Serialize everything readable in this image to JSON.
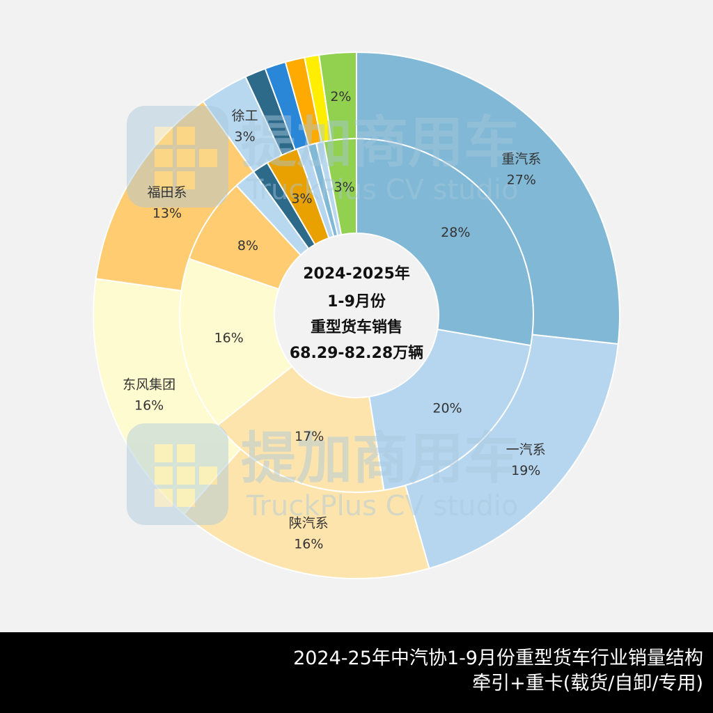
{
  "chart_data": {
    "type": "pie",
    "variant": "double-donut",
    "center_title": [
      "2024-2025年",
      "1-9月份",
      "重型货车销售",
      "68.29-82.28万辆"
    ],
    "rings": [
      {
        "name": "",
        "position": "inner",
        "slices": [
          {
            "label": "",
            "value": 28,
            "value_label": "28%",
            "color": "#80b8d6"
          },
          {
            "label": "",
            "value": 20,
            "value_label": "20%",
            "color": "#b6d5ef"
          },
          {
            "label": "",
            "value": 17,
            "value_label": "17%",
            "color": "#fde4ad"
          },
          {
            "label": "",
            "value": 16,
            "value_label": "16%",
            "color": "#fffbd0"
          },
          {
            "label": "",
            "value": 8,
            "value_label": "8%",
            "color": "#ffcc72"
          },
          {
            "label": "",
            "value": 2,
            "value_label": "",
            "color": "#b8d8f0"
          },
          {
            "label": "",
            "value": 1.5,
            "value_label": "",
            "color": "#2d6a8a"
          },
          {
            "label": "",
            "value": 3,
            "value_label": "3%",
            "color": "#e8a100"
          },
          {
            "label": "",
            "value": 1,
            "value_label": "",
            "color": "#b6d5ef"
          },
          {
            "label": "",
            "value": 0.8,
            "value_label": "",
            "color": "#80b8d6"
          },
          {
            "label": "",
            "value": 0.7,
            "value_label": "",
            "color": "#b8d8f0"
          },
          {
            "label": "",
            "value": 3,
            "value_label": "3%",
            "color": "#92d050"
          }
        ]
      },
      {
        "name": "",
        "position": "outer",
        "slices": [
          {
            "label": "重汽系",
            "value": 27,
            "value_label": "27%",
            "color": "#80b8d6"
          },
          {
            "label": "一汽系",
            "value": 19,
            "value_label": "19%",
            "color": "#b6d5ef"
          },
          {
            "label": "陕汽系",
            "value": 16,
            "value_label": "16%",
            "color": "#fde4ad"
          },
          {
            "label": "东风集团",
            "value": 16,
            "value_label": "16%",
            "color": "#fffbd0"
          },
          {
            "label": "福田系",
            "value": 13,
            "value_label": "13%",
            "color": "#ffcc72"
          },
          {
            "label": "徐工",
            "value": 3,
            "value_label": "3%",
            "color": "#b8d8f0"
          },
          {
            "label": "",
            "value": 1.3,
            "value_label": "",
            "color": "#2d6a8a"
          },
          {
            "label": "",
            "value": 1.3,
            "value_label": "",
            "color": "#2a86d6"
          },
          {
            "label": "",
            "value": 1.2,
            "value_label": "",
            "color": "#ffaa00"
          },
          {
            "label": "",
            "value": 0.9,
            "value_label": "",
            "color": "#ffee00"
          },
          {
            "label": "",
            "value": 2.3,
            "value_label": "2%",
            "color": "#92d050"
          }
        ]
      }
    ]
  },
  "watermark": {
    "brand": "提加商用车",
    "sub": "TruckPlus CV studio",
    "icon": "truckplus-logo-icon",
    "color": "#a8c8dc"
  },
  "footer": {
    "line1": "2024-25年中汽协1-9月份重型货车行业销量结构",
    "line2": "牵引+重卡(载货/自卸/专用)"
  }
}
